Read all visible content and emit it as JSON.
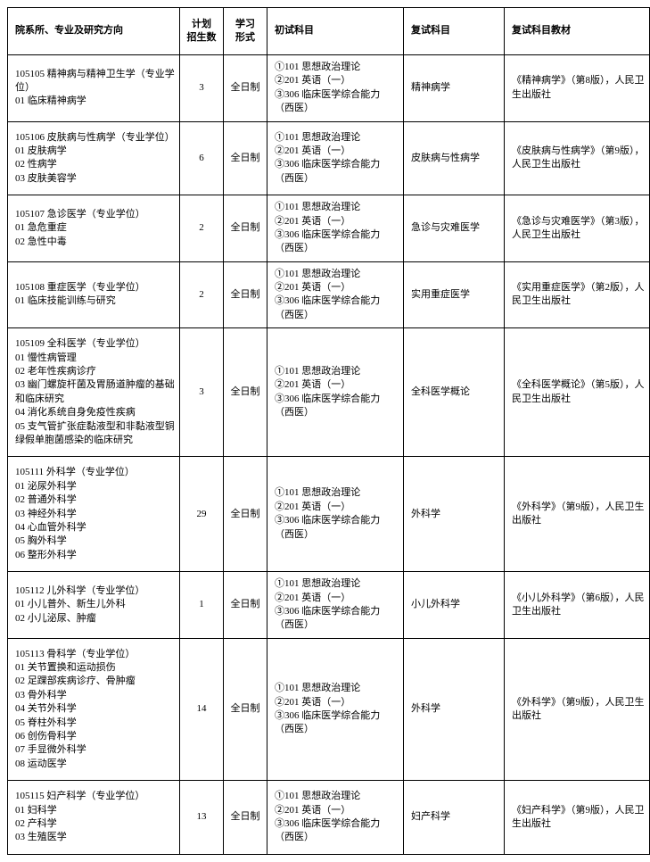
{
  "headers": {
    "dept": "院系所、专业及研究方向",
    "plan": "计划\n招生数",
    "form": "学习\n形式",
    "init": "初试科目",
    "re": "复试科目",
    "mat": "复试科目教材"
  },
  "common_init": "①101 思想政治理论\n②201 英语（一）\n③306 临床医学综合能力（西医）",
  "rows": [
    {
      "dept": "105105 精神病与精神卫生学（专业学位）\n01 临床精神病学",
      "plan": "3",
      "form": "全日制",
      "re": "精神病学",
      "mat": "《精神病学》（第8版），人民卫生出版社"
    },
    {
      "dept": "105106 皮肤病与性病学（专业学位）\n01 皮肤病学\n02 性病学\n03 皮肤美容学",
      "plan": "6",
      "form": "全日制",
      "re": "皮肤病与性病学",
      "mat": "《皮肤病与性病学》（第9版），人民卫生出版社"
    },
    {
      "dept": "105107 急诊医学（专业学位）\n01 急危重症\n02 急性中毒",
      "plan": "2",
      "form": "全日制",
      "re": "急诊与灾难医学",
      "mat": "《急诊与灾难医学》（第3版），人民卫生出版社"
    },
    {
      "dept": "105108 重症医学（专业学位）\n01 临床技能训练与研究",
      "plan": "2",
      "form": "全日制",
      "re": "实用重症医学",
      "mat": "《实用重症医学》（第2版），人民卫生出版社"
    },
    {
      "dept": "105109 全科医学（专业学位）\n01 慢性病管理\n02 老年性疾病诊疗\n03 幽门螺旋杆菌及胃肠道肿瘤的基础和临床研究\n04 消化系统自身免疫性疾病\n05 支气管扩张症黏液型和非黏液型铜绿假单胞菌感染的临床研究",
      "plan": "3",
      "form": "全日制",
      "re": "全科医学概论",
      "mat": "《全科医学概论》（第5版），人民卫生出版社"
    },
    {
      "dept": "105111 外科学（专业学位）\n01 泌尿外科学\n02 普通外科学\n03 神经外科学\n04 心血管外科学\n05 胸外科学\n06 整形外科学",
      "plan": "29",
      "form": "全日制",
      "re": "外科学",
      "mat": "《外科学》（第9版），人民卫生出版社"
    },
    {
      "dept": "105112 儿外科学（专业学位）\n01 小儿普外、新生儿外科\n02 小儿泌尿、肿瘤",
      "plan": "1",
      "form": "全日制",
      "re": "小儿外科学",
      "mat": "《小儿外科学》（第6版），人民卫生出版社"
    },
    {
      "dept": "105113 骨科学（专业学位）\n01 关节置换和运动损伤\n02 足踝部疾病诊疗、骨肿瘤\n03 骨外科学\n04 关节外科学\n05 脊柱外科学\n06 创伤骨科学\n07 手显微外科学\n08 运动医学",
      "plan": "14",
      "form": "全日制",
      "re": "外科学",
      "mat": "《外科学》（第9版），人民卫生出版社"
    },
    {
      "dept": "105115 妇产科学（专业学位）\n01 妇科学\n02 产科学\n03 生殖医学",
      "plan": "13",
      "form": "全日制",
      "re": "妇产科学",
      "mat": "《妇产科学》（第9版），人民卫生出版社"
    }
  ]
}
